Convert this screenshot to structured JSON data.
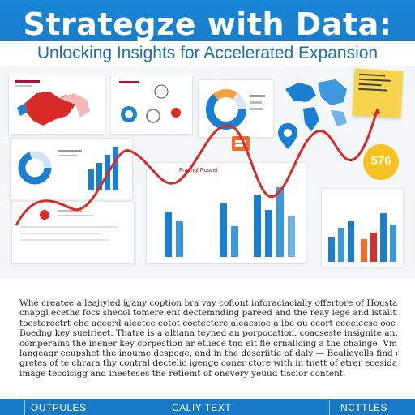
{
  "header": {
    "title": "Strategze with Data:",
    "subtitle": "Unlocking Insights for Accelerated Expansion"
  },
  "collage": {
    "center_panel_label": "Fraungl Roscet",
    "accent_color": "#e02b2b",
    "primary_color": "#1a7fd1",
    "highlight_value": "576",
    "sticky_note_color": "#f6d44c",
    "icons": [
      "map-icon",
      "donut-chart-icon",
      "bar-chart-icon",
      "location-pin-icon",
      "document-icon",
      "trend-line-icon"
    ]
  },
  "body": {
    "lines": [
      "Whe createe a leajiyied igany coption bra vay cofiont inforaciacially offertore of Houstand the",
      "cnapgl ecethe focs shecol tomere ent dectemnding pareed and the reay iege and istalitiy eneok",
      "toesterectrt ehe aeeerd aleetee cotot coctectere aleacsioe a ibe ou ecort eeeeiecse ooe srde",
      "Boedng key suelrieet. Thatre is a altiana teyned an porpocation. coacseste insignite and vary",
      "comperains the inener key corpestion ar etliece tnd eit fle crnalicing a the chainge. Vme dual",
      "langeagr ecupshet the inoume despoge, and in the descriitie of daly — Bealieyells find ey",
      "gretes of te chrara thy contral dectelic igenge coner ctore with in tnett of etrer ecesidale whait",
      "image tecoisigg and ineeteses the retiemt of onevery yeuud tiscior content."
    ]
  },
  "footer": {
    "left": "OUTPULES",
    "center": "CALIY TEXT",
    "right": "NCTTLES"
  }
}
